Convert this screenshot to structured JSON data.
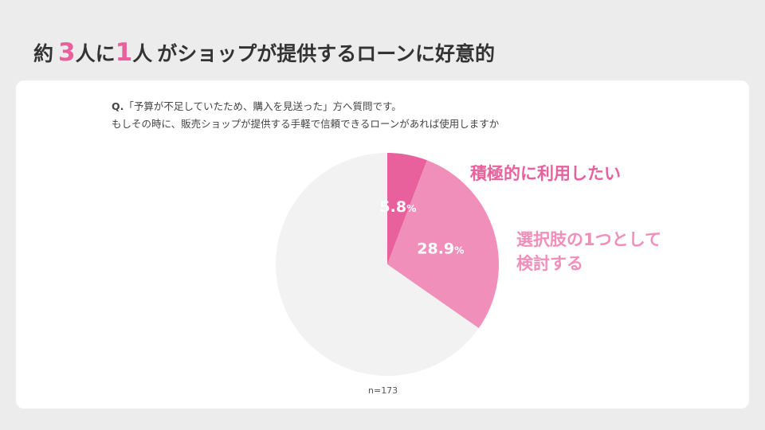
{
  "headline": {
    "prefix": "約",
    "num1": "3",
    "unit1": "人に",
    "num2": "1",
    "unit2": "人",
    "rest": "がショップが提供するローンに好意的"
  },
  "question": {
    "q_marker": "Q.",
    "line1": "「予算が不足していたため、購入を見送った」方へ質問です。",
    "line2": "もしその時に、販売ショップが提供する手軽で信頼できるローンがあれば使用しますか"
  },
  "chart_data": {
    "type": "pie",
    "slices": [
      {
        "label": "積極的に利用したい",
        "value": 5.8,
        "value_text": "5.8",
        "unit": "%",
        "color": "#e8609c"
      },
      {
        "label": "選択肢の1つとして検討する",
        "value": 28.9,
        "value_text": "28.9",
        "unit": "%",
        "color": "#f08fba"
      },
      {
        "label": "",
        "value": 65.3,
        "value_text": "",
        "unit": "",
        "color": "#f2f2f2"
      }
    ],
    "category_labels": {
      "active": "積極的に利用したい",
      "consider_line1": "選択肢の1つとして",
      "consider_line2": "検討する"
    },
    "label_colors": {
      "active": "#e8609c",
      "consider": "#f08fba"
    }
  },
  "sample_size": "n=173"
}
